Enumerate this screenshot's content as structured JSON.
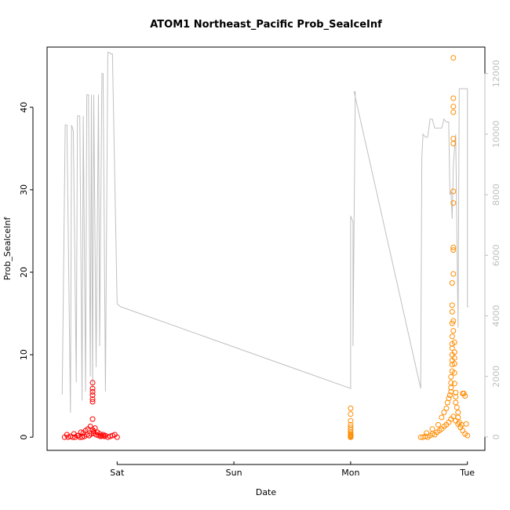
{
  "chart_data": {
    "type": "scatter",
    "title": "ATOM1 Northeast_Pacific Prob_SealceInf",
    "xlabel": "Date",
    "ylabel": "Prob_SealceInf",
    "x_unit": "day",
    "x_ticks": [
      {
        "label": "Sat",
        "value": 1.0
      },
      {
        "label": "Sun",
        "value": 2.0
      },
      {
        "label": "Mon",
        "value": 3.0
      },
      {
        "label": "Tue",
        "value": 4.0
      }
    ],
    "xlim": [
      0.4,
      4.15
    ],
    "ylim": [
      -1.6,
      47.3
    ],
    "y_ticks": [
      0,
      10,
      20,
      30,
      40
    ],
    "y2_ticks": [
      0,
      2000,
      4000,
      6000,
      8000,
      10000,
      12000
    ],
    "y2lim": [
      -444,
      12876
    ],
    "grid": false,
    "legend": "none",
    "colors": {
      "series_red": "#ff0000",
      "series_orange": "#ff8c00",
      "depth_line": "#c0c0c0",
      "right_axis": "#bfbfbf"
    },
    "series": [
      {
        "color": "red",
        "x": [
          0.55,
          0.58,
          0.6,
          0.62,
          0.64,
          0.66,
          0.68,
          0.7,
          0.72,
          0.74,
          0.76,
          0.78,
          0.8,
          0.82,
          0.84,
          0.86,
          0.88,
          0.9,
          0.92,
          0.94,
          0.96,
          0.98,
          1.0,
          0.57,
          0.63,
          0.69,
          0.73,
          0.75,
          0.77,
          0.79,
          0.79,
          0.79,
          0.79,
          0.79,
          0.79,
          0.79,
          0.79,
          0.8,
          0.81,
          0.83,
          0.71,
          0.67,
          0.85,
          0.87,
          0.89
        ],
        "y": [
          0,
          0,
          0.1,
          0,
          0,
          0.2,
          0,
          0,
          0.1,
          0.3,
          0.2,
          0.4,
          0.5,
          0.3,
          0.2,
          0.1,
          0.3,
          0.2,
          0,
          0.1,
          0.2,
          0.3,
          0,
          0.3,
          0.4,
          0.6,
          0.8,
          1.0,
          1.3,
          4.3,
          4.6,
          5.1,
          5.5,
          5.9,
          6.6,
          2.2,
          0.9,
          0.7,
          1.1,
          0.6,
          0.5,
          0.2,
          0.4,
          0.2,
          0.1
        ]
      },
      {
        "color": "orange",
        "x": [
          3.0,
          3.0,
          3.0,
          3.0,
          3.0,
          3.0,
          3.0,
          3.0,
          3.0,
          3.0,
          3.0,
          3.0,
          3.0,
          3.6,
          3.62,
          3.64,
          3.66,
          3.68,
          3.7,
          3.72,
          3.74,
          3.76,
          3.78,
          3.8,
          3.82,
          3.84,
          3.86,
          3.88,
          3.9,
          3.92,
          3.94,
          3.96,
          3.98,
          4.0,
          3.65,
          3.7,
          3.75,
          3.78,
          3.8,
          3.82,
          3.83,
          3.84,
          3.85,
          3.86,
          3.86,
          3.86,
          3.86,
          3.87,
          3.87,
          3.87,
          3.87,
          3.87,
          3.87,
          3.87,
          3.87,
          3.87,
          3.87,
          3.87,
          3.88,
          3.88,
          3.88,
          3.88,
          3.88,
          3.88,
          3.88,
          3.88,
          3.88,
          3.88,
          3.88,
          3.88,
          3.88,
          3.89,
          3.89,
          3.89,
          3.89,
          3.89,
          3.89,
          3.9,
          3.9,
          3.9,
          3.91,
          3.92,
          3.92,
          3.93,
          3.94,
          3.95,
          3.96,
          3.97,
          3.98,
          3.99
        ],
        "y": [
          3.5,
          2.8,
          2.0,
          1.5,
          1.2,
          0.9,
          0.6,
          0.4,
          0.2,
          0.1,
          0,
          0,
          0.3,
          0,
          0,
          0.1,
          0,
          0.2,
          0.4,
          0.3,
          0.6,
          0.8,
          1.0,
          1.3,
          1.5,
          1.8,
          2.2,
          2.5,
          2.0,
          1.6,
          1.2,
          0.8,
          0.4,
          0.2,
          0.5,
          1.0,
          1.5,
          2.4,
          3.0,
          3.5,
          4.2,
          4.7,
          5.1,
          5.5,
          6.0,
          6.6,
          7.3,
          8.0,
          8.8,
          9.3,
          10.0,
          10.8,
          11.3,
          12.2,
          13.8,
          15.2,
          16.0,
          18.7,
          19.8,
          22.7,
          23.0,
          28.4,
          29.8,
          35.6,
          36.2,
          39.4,
          40.1,
          41.1,
          46.0,
          14.1,
          12.9,
          11.5,
          10.3,
          9.6,
          8.9,
          7.8,
          6.5,
          5.4,
          4.9,
          4.2,
          3.6,
          3.0,
          2.4,
          1.8,
          1.2,
          1.5,
          5.3,
          5.3,
          5.0,
          1.6
        ]
      }
    ],
    "secondary_series": {
      "name": "",
      "color": "grey",
      "axis": "right",
      "x": [
        0.53,
        0.555,
        0.57,
        0.6,
        0.61,
        0.625,
        0.65,
        0.66,
        0.68,
        0.7,
        0.71,
        0.73,
        0.74,
        0.755,
        0.77,
        0.78,
        0.79,
        0.8,
        0.82,
        0.84,
        0.85,
        0.87,
        0.88,
        0.9,
        0.92,
        0.93,
        0.95,
        0.96,
        1.0,
        1.0,
        1.03,
        3.0,
        3.0,
        3.02,
        3.02,
        3.04,
        3.04,
        3.04,
        3.03,
        3.6,
        3.61,
        3.62,
        3.64,
        3.65,
        3.66,
        3.68,
        3.7,
        3.72,
        3.74,
        3.76,
        3.78,
        3.8,
        3.82,
        3.84,
        3.85,
        3.86,
        3.87,
        3.88,
        3.89,
        3.9,
        3.92,
        3.93,
        3.94,
        3.95,
        3.96,
        3.97,
        3.98,
        3.99,
        4.0,
        4.0,
        4.01
      ],
      "y": [
        1400,
        10300,
        10300,
        800,
        10300,
        10100,
        1800,
        10600,
        10600,
        1200,
        10600,
        1500,
        11300,
        11300,
        2000,
        11300,
        1500,
        11300,
        2300,
        11300,
        3000,
        12000,
        12000,
        1500,
        12700,
        12700,
        12650,
        12650,
        4400,
        4400,
        4300,
        1600,
        7300,
        7100,
        3000,
        11400,
        11400,
        11400,
        11400,
        1600,
        9200,
        10000,
        9900,
        9900,
        9900,
        10500,
        10500,
        10200,
        10200,
        10200,
        10200,
        10500,
        10400,
        10400,
        8000,
        8100,
        7200,
        9000,
        9500,
        10000,
        3600,
        11500,
        11500,
        11500,
        11500,
        11500,
        11500,
        11500,
        11500,
        4300,
        4300
      ]
    }
  }
}
